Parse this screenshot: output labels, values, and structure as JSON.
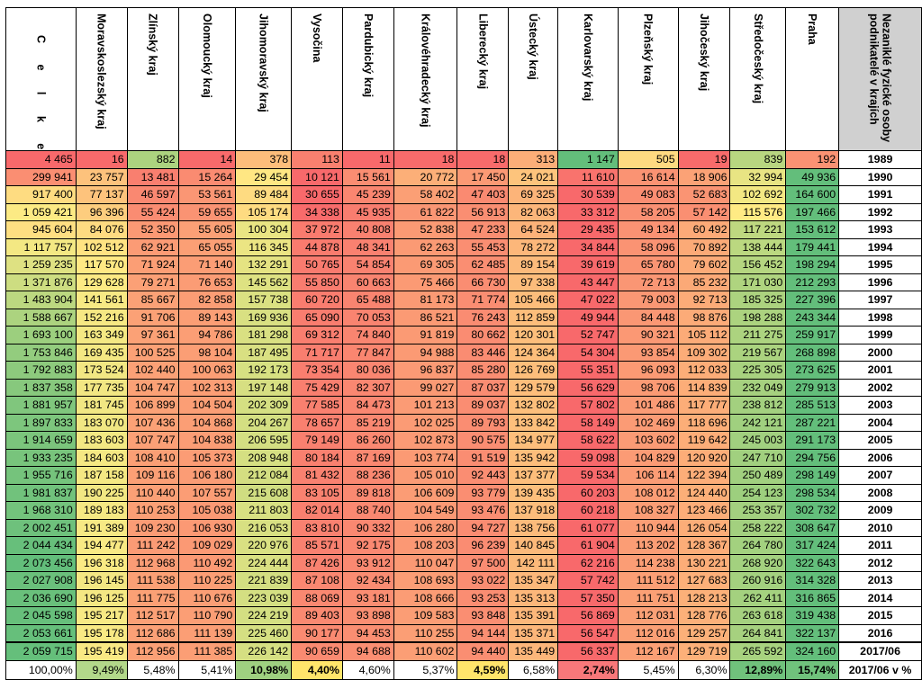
{
  "header": {
    "total_label": "C e l k e m",
    "year_label": "Nezaniklé fyzické osoby podnikatelé v krajích",
    "regions": [
      "Moravskoslezský kraj",
      "Zlínský kraj",
      "Olomoucký kraj",
      "Jihomoravský kraj",
      "Vysočina",
      "Pardubický kraj",
      "Královéhradecký kraj",
      "Liberecký kraj",
      "Ústecký kraj",
      "Karlovarský kraj",
      "Plzeňský kraj",
      "Jihočeský kraj",
      "Středočeský kraj",
      "Praha"
    ]
  },
  "rows": [
    {
      "total": "4 465",
      "vals": [
        "16",
        "882",
        "14",
        "378",
        "113",
        "11",
        "18",
        "18",
        "313",
        "1 147",
        "505",
        "19",
        "839",
        "192"
      ],
      "year": "1989"
    },
    {
      "total": "299 941",
      "vals": [
        "23 757",
        "13 481",
        "15 264",
        "29 454",
        "10 121",
        "15 561",
        "20 772",
        "17 450",
        "24 021",
        "11 610",
        "16 614",
        "18 906",
        "32 994",
        "49 936"
      ],
      "year": "1990"
    },
    {
      "total": "917 400",
      "vals": [
        "77 137",
        "46 597",
        "53 561",
        "89 484",
        "30 655",
        "45 239",
        "58 402",
        "47 403",
        "69 325",
        "30 539",
        "49 083",
        "52 683",
        "102 692",
        "164 600"
      ],
      "year": "1991"
    },
    {
      "total": "1 059 421",
      "vals": [
        "96 396",
        "55 424",
        "59 655",
        "105 174",
        "34 338",
        "45 935",
        "61 822",
        "56 913",
        "82 063",
        "33 312",
        "58 205",
        "57 142",
        "115 576",
        "197 466"
      ],
      "year": "1992"
    },
    {
      "total": "945 604",
      "vals": [
        "84 076",
        "52 350",
        "55 605",
        "100 304",
        "37 972",
        "40 808",
        "52 838",
        "47 233",
        "64 524",
        "29 435",
        "49 134",
        "60 492",
        "117 221",
        "153 612"
      ],
      "year": "1993"
    },
    {
      "total": "1 117 757",
      "vals": [
        "102 512",
        "62 921",
        "65 055",
        "116 345",
        "44 878",
        "48 341",
        "62 263",
        "55 453",
        "78 272",
        "34 844",
        "58 096",
        "70 892",
        "138 444",
        "179 441"
      ],
      "year": "1994"
    },
    {
      "total": "1 259 235",
      "vals": [
        "117 570",
        "71 924",
        "71 140",
        "132 291",
        "50 765",
        "54 854",
        "69 305",
        "62 485",
        "89 154",
        "39 619",
        "65 780",
        "79 602",
        "156 452",
        "198 294"
      ],
      "year": "1995"
    },
    {
      "total": "1 371 876",
      "vals": [
        "129 628",
        "79 271",
        "76 653",
        "145 562",
        "55 850",
        "60 663",
        "75 466",
        "66 730",
        "97 338",
        "43 447",
        "72 713",
        "85 232",
        "171 030",
        "212 293"
      ],
      "year": "1996"
    },
    {
      "total": "1 483 904",
      "vals": [
        "141 561",
        "85 667",
        "82 858",
        "157 738",
        "60 720",
        "65 488",
        "81 173",
        "71 774",
        "105 466",
        "47 022",
        "79 003",
        "92 713",
        "185 325",
        "227 396"
      ],
      "year": "1997"
    },
    {
      "total": "1 588 667",
      "vals": [
        "152 216",
        "91 706",
        "89 143",
        "169 936",
        "65 090",
        "70 053",
        "86 521",
        "76 243",
        "112 859",
        "49 944",
        "84 448",
        "98 876",
        "198 288",
        "243 344"
      ],
      "year": "1998"
    },
    {
      "total": "1 693 100",
      "vals": [
        "163 349",
        "97 361",
        "94 786",
        "181 298",
        "69 312",
        "74 840",
        "91 819",
        "80 662",
        "120 301",
        "52 747",
        "90 321",
        "105 112",
        "211 275",
        "259 917"
      ],
      "year": "1999"
    },
    {
      "total": "1 753 846",
      "vals": [
        "169 435",
        "100 525",
        "98 104",
        "187 495",
        "71 717",
        "77 847",
        "94 988",
        "83 446",
        "124 364",
        "54 304",
        "93 854",
        "109 302",
        "219 567",
        "268 898"
      ],
      "year": "2000"
    },
    {
      "total": "1 792 883",
      "vals": [
        "173 524",
        "102 440",
        "100 063",
        "192 173",
        "73 354",
        "80 036",
        "96 837",
        "85 280",
        "126 769",
        "55 351",
        "96 093",
        "112 033",
        "225 305",
        "273 625"
      ],
      "year": "2001"
    },
    {
      "total": "1 837 358",
      "vals": [
        "177 735",
        "104 747",
        "102 313",
        "197 148",
        "75 429",
        "82 307",
        "99 027",
        "87 037",
        "129 579",
        "56 629",
        "98 706",
        "114 839",
        "232 049",
        "279 913"
      ],
      "year": "2002"
    },
    {
      "total": "1 881 957",
      "vals": [
        "181 745",
        "106 899",
        "104 504",
        "202 309",
        "77 585",
        "84 473",
        "101 213",
        "89 037",
        "132 802",
        "57 802",
        "101 486",
        "117 777",
        "238 812",
        "285 513"
      ],
      "year": "2003"
    },
    {
      "total": "1 897 833",
      "vals": [
        "183 070",
        "107 436",
        "104 868",
        "204 267",
        "78 657",
        "85 219",
        "102 025",
        "89 793",
        "133 842",
        "58 149",
        "102 469",
        "118 696",
        "242 121",
        "287 221"
      ],
      "year": "2004"
    },
    {
      "total": "1 914 659",
      "vals": [
        "183 603",
        "107 747",
        "104 838",
        "206 595",
        "79 149",
        "86 260",
        "102 873",
        "90 575",
        "134 977",
        "58 622",
        "103 602",
        "119 642",
        "245 003",
        "291 173"
      ],
      "year": "2005"
    },
    {
      "total": "1 933 235",
      "vals": [
        "184 603",
        "108 410",
        "105 373",
        "208 948",
        "80 184",
        "87 169",
        "103 774",
        "91 519",
        "135 942",
        "59 098",
        "104 829",
        "120 920",
        "247 710",
        "294 756"
      ],
      "year": "2006"
    },
    {
      "total": "1 955 716",
      "vals": [
        "187 158",
        "109 116",
        "106 180",
        "212 084",
        "81 432",
        "88 236",
        "105 010",
        "92 443",
        "137 377",
        "59 534",
        "106 114",
        "122 394",
        "250 489",
        "298 149"
      ],
      "year": "2007"
    },
    {
      "total": "1 981 837",
      "vals": [
        "190 225",
        "110 440",
        "107 557",
        "215 608",
        "83 105",
        "89 818",
        "106 609",
        "93 779",
        "139 435",
        "60 203",
        "108 012",
        "124 440",
        "254 123",
        "298 534"
      ],
      "year": "2008"
    },
    {
      "total": "1 968 310",
      "vals": [
        "189 183",
        "110 253",
        "105 038",
        "211 803",
        "82 014",
        "88 740",
        "104 549",
        "93 476",
        "137 918",
        "60 218",
        "108 327",
        "123 466",
        "253 357",
        "302 732"
      ],
      "year": "2009"
    },
    {
      "total": "2 002 451",
      "vals": [
        "191 389",
        "109 230",
        "106 930",
        "216 053",
        "83 810",
        "90 332",
        "106 280",
        "94 727",
        "138 756",
        "61 077",
        "110 944",
        "126 054",
        "258 222",
        "308 647"
      ],
      "year": "2010"
    },
    {
      "total": "2 044 434",
      "vals": [
        "194 477",
        "111 242",
        "109 029",
        "220 976",
        "85 571",
        "92 175",
        "108 203",
        "96 239",
        "140 845",
        "61 904",
        "113 202",
        "128 367",
        "264 780",
        "317 424"
      ],
      "year": "2011"
    },
    {
      "total": "2 073 456",
      "vals": [
        "196 318",
        "112 968",
        "110 492",
        "224 444",
        "87 426",
        "93 912",
        "110 047",
        "97 500",
        "142 111",
        "62 216",
        "114 238",
        "130 221",
        "268 920",
        "322 643"
      ],
      "year": "2012"
    },
    {
      "total": "2 027 908",
      "vals": [
        "196 145",
        "111 538",
        "110 225",
        "221 839",
        "87 108",
        "92 434",
        "108 693",
        "93 022",
        "135 347",
        "57 742",
        "111 512",
        "127 683",
        "260 916",
        "314 328"
      ],
      "year": "2013"
    },
    {
      "total": "2 036 690",
      "vals": [
        "196 125",
        "111 775",
        "110 676",
        "223 039",
        "88 069",
        "93 181",
        "108 666",
        "93 253",
        "135 313",
        "57 350",
        "111 751",
        "128 213",
        "262 411",
        "316 865"
      ],
      "year": "2014"
    },
    {
      "total": "2 045 598",
      "vals": [
        "195 217",
        "112 517",
        "110 790",
        "224 219",
        "89 403",
        "93 898",
        "109 583",
        "93 848",
        "135 391",
        "56 869",
        "112 031",
        "128 776",
        "263 618",
        "319 438"
      ],
      "year": "2015"
    },
    {
      "total": "2 053 661",
      "vals": [
        "195 178",
        "112 686",
        "111 139",
        "225 460",
        "90 177",
        "94 453",
        "110 255",
        "94 144",
        "135 371",
        "56 547",
        "112 016",
        "129 257",
        "264 841",
        "322 137"
      ],
      "year": "2016"
    },
    {
      "total": "2 059 715",
      "vals": [
        "195 419",
        "112 956",
        "111 385",
        "226 142",
        "90 659",
        "94 688",
        "110 602",
        "94 440",
        "135 449",
        "56 337",
        "112 167",
        "129 719",
        "265 592",
        "324 160"
      ],
      "year": "2017/06"
    }
  ],
  "percent_row": {
    "total": "100,00%",
    "vals": [
      "9,49%",
      "5,48%",
      "5,41%",
      "10,98%",
      "4,40%",
      "4,60%",
      "5,37%",
      "4,59%",
      "6,58%",
      "2,74%",
      "5,45%",
      "6,30%",
      "12,89%",
      "15,74%"
    ],
    "year": "2017/06 v %",
    "colors": [
      "#b3d88a",
      "#ffffff",
      "#ffffff",
      "#9fd080",
      "#ffe56b",
      "#ffffff",
      "#ffffff",
      "#ffe56b",
      "#ffffff",
      "#f8787a",
      "#ffffff",
      "#ffffff",
      "#70c27c",
      "#70c27c"
    ],
    "bold": [
      false,
      false,
      false,
      true,
      true,
      false,
      false,
      true,
      false,
      true,
      false,
      false,
      true,
      true
    ]
  }
}
